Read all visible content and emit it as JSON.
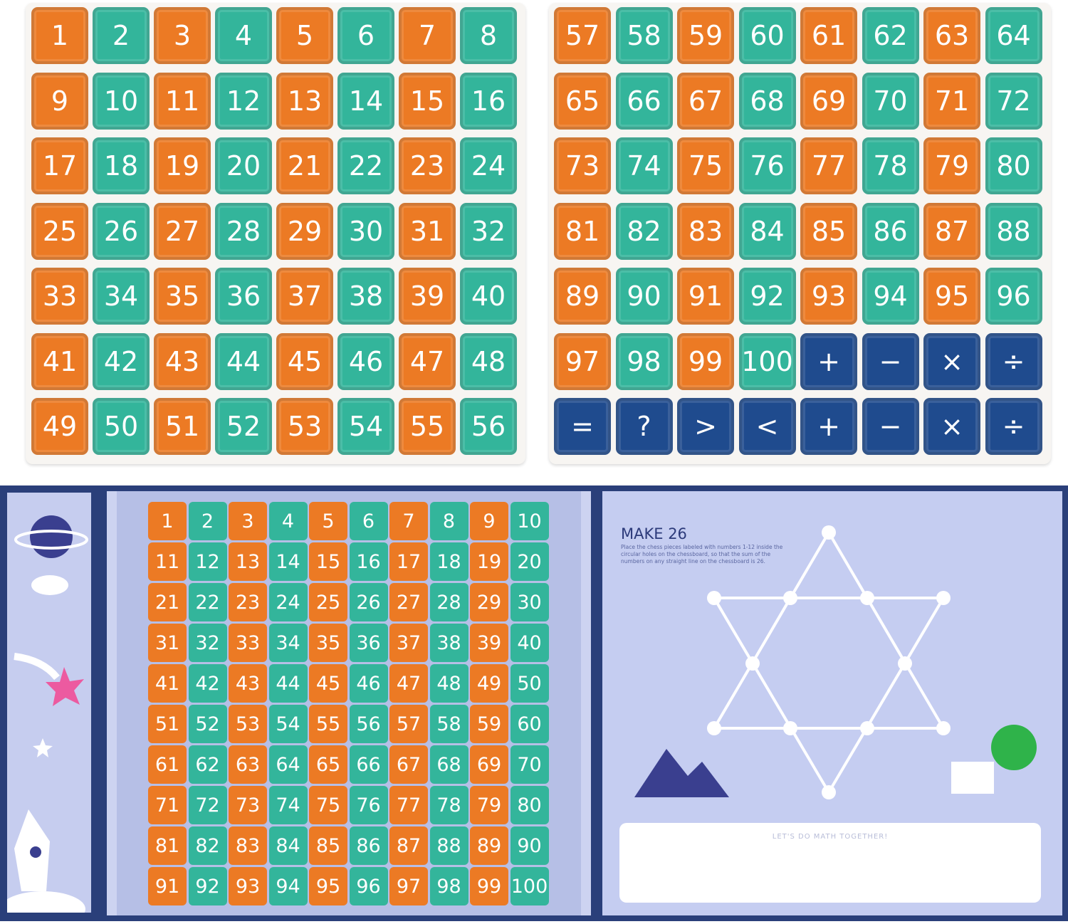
{
  "colors": {
    "orange": "#ec7a24",
    "teal": "#33b59b",
    "navy": "#1f4b8e",
    "page": "#c5cdf1"
  },
  "top_left_tiles": [
    "1",
    "2",
    "3",
    "4",
    "5",
    "6",
    "7",
    "8",
    "9",
    "10",
    "11",
    "12",
    "13",
    "14",
    "15",
    "16",
    "17",
    "18",
    "19",
    "20",
    "21",
    "22",
    "23",
    "24",
    "25",
    "26",
    "27",
    "28",
    "29",
    "30",
    "31",
    "32",
    "33",
    "34",
    "35",
    "36",
    "37",
    "38",
    "39",
    "40",
    "41",
    "42",
    "43",
    "44",
    "45",
    "46",
    "47",
    "48",
    "49",
    "50",
    "51",
    "52",
    "53",
    "54",
    "55",
    "56"
  ],
  "top_right_tiles": [
    "57",
    "58",
    "59",
    "60",
    "61",
    "62",
    "63",
    "64",
    "65",
    "66",
    "67",
    "68",
    "69",
    "70",
    "71",
    "72",
    "73",
    "74",
    "75",
    "76",
    "77",
    "78",
    "79",
    "80",
    "81",
    "82",
    "83",
    "84",
    "85",
    "86",
    "87",
    "88",
    "89",
    "90",
    "91",
    "92",
    "93",
    "94",
    "95",
    "96",
    "97",
    "98",
    "99",
    "100",
    "+",
    "−",
    "×",
    "÷",
    "=",
    "?",
    ">",
    "<",
    "+",
    "−",
    "×",
    "÷"
  ],
  "board_tiles": [
    "1",
    "2",
    "3",
    "4",
    "5",
    "6",
    "7",
    "8",
    "9",
    "10",
    "11",
    "12",
    "13",
    "14",
    "15",
    "16",
    "17",
    "18",
    "19",
    "20",
    "21",
    "22",
    "23",
    "24",
    "25",
    "26",
    "27",
    "28",
    "29",
    "30",
    "31",
    "32",
    "33",
    "34",
    "35",
    "36",
    "37",
    "38",
    "39",
    "40",
    "41",
    "42",
    "43",
    "44",
    "45",
    "46",
    "47",
    "48",
    "49",
    "50",
    "51",
    "52",
    "53",
    "54",
    "55",
    "56",
    "57",
    "58",
    "59",
    "60",
    "61",
    "62",
    "63",
    "64",
    "65",
    "66",
    "67",
    "68",
    "69",
    "70",
    "71",
    "72",
    "73",
    "74",
    "75",
    "76",
    "77",
    "78",
    "79",
    "80",
    "81",
    "82",
    "83",
    "84",
    "85",
    "86",
    "87",
    "88",
    "89",
    "90",
    "91",
    "92",
    "93",
    "94",
    "95",
    "96",
    "97",
    "98",
    "99",
    "100"
  ],
  "puzzle": {
    "title": "MAKE 26",
    "instructions": "Place the chess pieces labeled with numbers 1-12 inside the circular holes on the chessboard, so that the sum of the numbers on any straight line on the chessboard is 26.",
    "footer": "LET'S DO MATH TOGETHER!"
  }
}
